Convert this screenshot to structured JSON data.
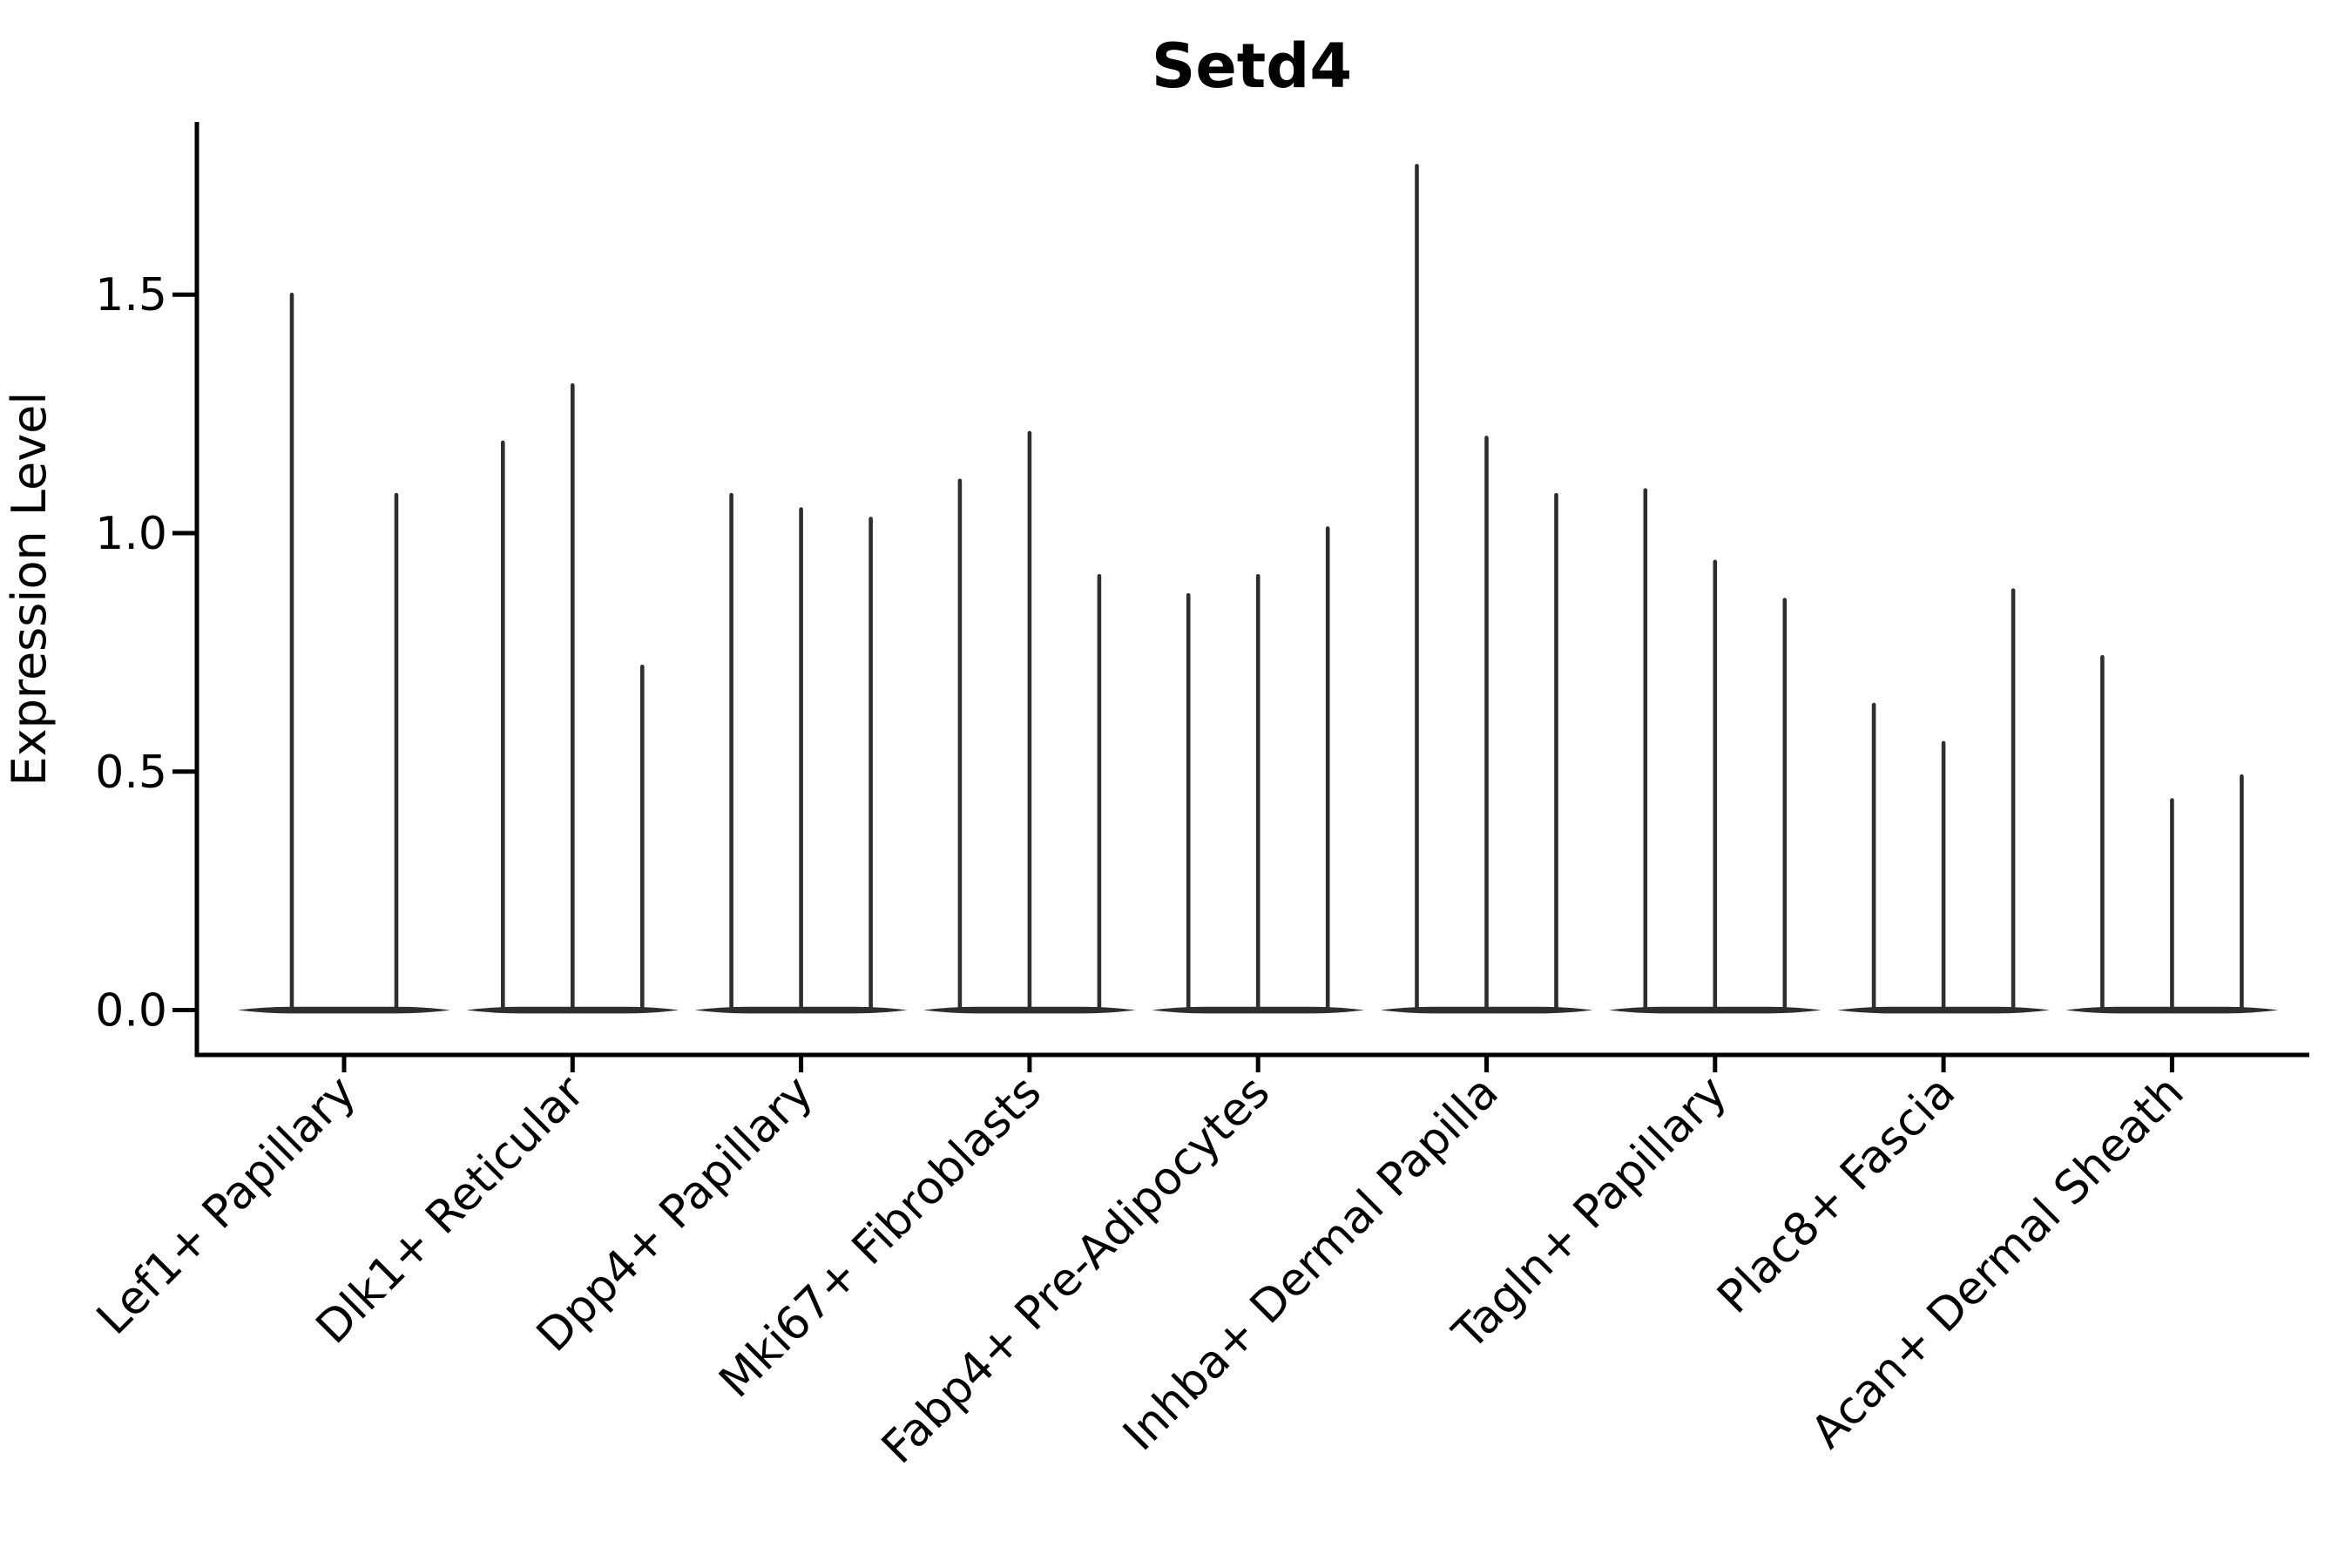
{
  "chart_data": {
    "type": "violin",
    "title": "Setd4",
    "xlabel": "",
    "ylabel": "Expression Level",
    "ytick_labels": [
      "0.0",
      "0.5",
      "1.0",
      "1.5"
    ],
    "ytick_values": [
      0.0,
      0.5,
      1.0,
      1.5
    ],
    "ylim": [
      -0.094,
      1.862
    ],
    "baseline_value": 0.0,
    "grid": false,
    "legend_position": "none",
    "xtick_label_rotation_deg": 45,
    "categories": [
      "Lef1+ Papillary",
      "Dlk1+ Reticular",
      "Dpp4+ Papillary",
      "Mki67+ Fibroblasts",
      "Fabp4+ Pre-Adipocytes",
      "Inhba+ Dermal Papilla",
      "Tagln+ Papillary",
      "Plac8+ Fascia",
      "Acan+ Dermal Sheath"
    ],
    "series": [
      {
        "category": "Lef1+ Papillary",
        "violin_peak_values": [
          1.5,
          1.08
        ]
      },
      {
        "category": "Dlk1+ Reticular",
        "violin_peak_values": [
          1.19,
          1.31,
          0.72
        ]
      },
      {
        "category": "Dpp4+ Papillary",
        "violin_peak_values": [
          1.08,
          1.05,
          1.03
        ]
      },
      {
        "category": "Mki67+ Fibroblasts",
        "violin_peak_values": [
          1.11,
          1.21,
          0.91
        ]
      },
      {
        "category": "Fabp4+ Pre-Adipocytes",
        "violin_peak_values": [
          0.87,
          0.91,
          1.01
        ]
      },
      {
        "category": "Inhba+ Dermal Papilla",
        "violin_peak_values": [
          1.77,
          1.2,
          1.08
        ]
      },
      {
        "category": "Tagln+ Papillary",
        "violin_peak_values": [
          1.09,
          0.94,
          0.86
        ]
      },
      {
        "category": "Plac8+ Fascia",
        "violin_peak_values": [
          0.64,
          0.56,
          0.88
        ]
      },
      {
        "category": "Acan+ Dermal Sheath",
        "violin_peak_values": [
          0.74,
          0.44,
          0.49
        ]
      }
    ],
    "style": {
      "ink_color": "#000000",
      "violin_color": "#2e2e2e",
      "background_color": "#ffffff"
    }
  }
}
